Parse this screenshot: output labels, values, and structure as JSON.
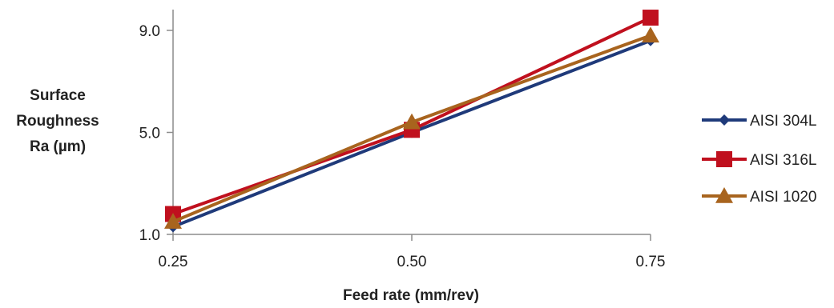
{
  "chart_data": {
    "type": "line",
    "title": "",
    "xlabel": "Feed rate (mm/rev)",
    "ylabel_lines": [
      "Surface",
      "Roughness",
      "Ra (µm)"
    ],
    "categories": [
      "0.25",
      "0.50",
      "0.75"
    ],
    "y_ticks": [
      "1.0",
      "5.0",
      "9.0"
    ],
    "ylim": [
      1.0,
      9.0
    ],
    "grid": false,
    "legend_position": "right",
    "series": [
      {
        "name": "AISI 304L",
        "color": "#1f3a7a",
        "marker": "diamond",
        "values": [
          1.3,
          5.0,
          8.6
        ]
      },
      {
        "name": "AISI 316L",
        "color": "#c0101e",
        "marker": "square",
        "values": [
          1.8,
          5.1,
          9.5
        ]
      },
      {
        "name": "AISI 1020",
        "color": "#a8641e",
        "marker": "triangle",
        "values": [
          1.5,
          5.4,
          8.8
        ]
      }
    ]
  }
}
